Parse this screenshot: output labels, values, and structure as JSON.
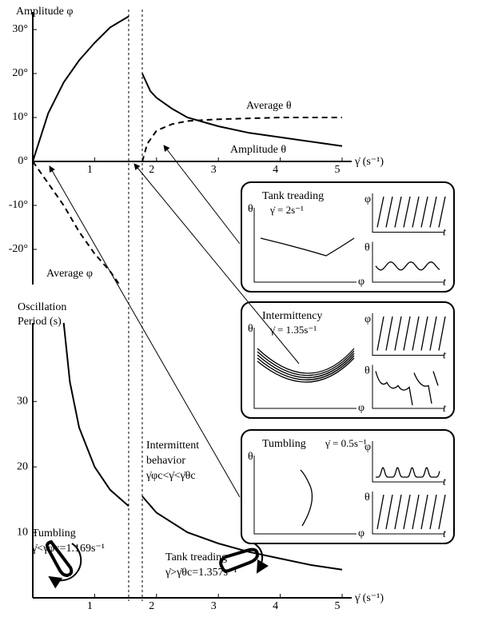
{
  "chart_data": [
    {
      "type": "line",
      "xlim": [
        0,
        5
      ],
      "ylim": [
        -28,
        34
      ],
      "xticks": [
        1,
        2,
        3,
        4,
        5
      ],
      "yticks": [
        {
          "value": -20,
          "label": "-20°"
        },
        {
          "value": -10,
          "label": "-10°"
        },
        {
          "value": 0,
          "label": "0°"
        },
        {
          "value": 10,
          "label": "10°"
        },
        {
          "value": 20,
          "label": "20°"
        },
        {
          "value": 30,
          "label": "30°"
        }
      ],
      "x_label": "γ̇ (s⁻¹)",
      "series": [
        {
          "name": "Amplitude φ",
          "color": "#000000",
          "dashed": false,
          "x": [
            0,
            0.25,
            0.5,
            0.75,
            1,
            1.25,
            1.55
          ],
          "values": [
            0,
            11,
            18,
            23,
            27,
            30.5,
            33
          ]
        },
        {
          "name": "Average φ",
          "color": "#000000",
          "dashed": true,
          "x": [
            0,
            0.25,
            0.5,
            0.75,
            1,
            1.25,
            1.4
          ],
          "values": [
            0,
            -5,
            -10,
            -16,
            -21,
            -25,
            -28
          ]
        },
        {
          "name": "Amplitude θ",
          "color": "#000000",
          "dashed": false,
          "x": [
            1.77,
            1.9,
            2,
            2.25,
            2.5,
            3,
            3.5,
            4,
            4.5,
            5
          ],
          "values": [
            20,
            16,
            14.5,
            12,
            10,
            8,
            6.5,
            5.5,
            4.5,
            3.5
          ]
        },
        {
          "name": "Average θ",
          "color": "#000000",
          "dashed": true,
          "x": [
            1.77,
            1.85,
            2,
            2.25,
            2.5,
            3,
            3.5,
            4,
            5
          ],
          "values": [
            0,
            4,
            7,
            8.5,
            9.2,
            9.6,
            9.8,
            10,
            10
          ]
        }
      ]
    },
    {
      "type": "line",
      "xlim": [
        0,
        5
      ],
      "ylim": [
        0,
        42
      ],
      "xticks": [
        1,
        2,
        3,
        4,
        5
      ],
      "yticks": [
        10,
        20,
        30
      ],
      "x_label": "γ̇ (s⁻¹)",
      "y_label": [
        "Oscillation",
        "Period (s)"
      ],
      "series": [
        {
          "color": "#000000",
          "dashed": false,
          "x": [
            0.5,
            0.6,
            0.75,
            1,
            1.25,
            1.55
          ],
          "values": [
            42,
            33,
            26,
            20,
            16.5,
            14
          ]
        },
        {
          "color": "#000000",
          "dashed": false,
          "x": [
            1.77,
            2,
            2.5,
            3,
            3.5,
            4,
            4.5,
            5
          ],
          "values": [
            15.5,
            13,
            10,
            8.3,
            7,
            6,
            5,
            4.3
          ]
        }
      ],
      "annotations": [
        [
          "Intermittent",
          "behavior",
          "γ̇φc<γ̇<γ̇θc"
        ],
        [
          "Tumbling",
          "γ̇<γ̇φc=1.169s⁻¹"
        ],
        [
          "Tank treading",
          "γ̇>γ̇θc=1.357s⁻¹"
        ]
      ]
    }
  ],
  "insets": [
    {
      "title": "Tank treading",
      "rate": "γ̇ = 2s⁻¹"
    },
    {
      "title": "Intermittency",
      "rate": "γ̇ = 1.35s⁻¹"
    },
    {
      "title": "Tumbling",
      "rate": "γ̇ = 0.5s⁻¹"
    }
  ],
  "symbols": {
    "theta": "θ",
    "phi": "φ",
    "t": "t"
  }
}
